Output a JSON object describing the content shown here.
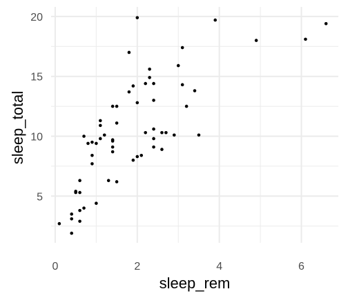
{
  "chart_data": {
    "type": "scatter",
    "title": "",
    "xlabel": "sleep_rem",
    "ylabel": "sleep_total",
    "xlim": [
      -0.1,
      6.9
    ],
    "ylim": [
      1.1,
      20.8
    ],
    "x_ticks": [
      0,
      2,
      4,
      6
    ],
    "x_tick_labels": [
      "0",
      "2",
      "4",
      "6"
    ],
    "y_ticks": [
      5,
      10,
      15,
      20
    ],
    "y_tick_labels": [
      "5",
      "10",
      "15",
      "20"
    ],
    "grid": true,
    "background": "#ffffff",
    "grid_color": "#ebebeb",
    "point_color": "#000000",
    "points": [
      [
        0.1,
        2.7
      ],
      [
        0.4,
        1.9
      ],
      [
        0.4,
        3.1
      ],
      [
        0.4,
        3.5
      ],
      [
        0.5,
        5.3
      ],
      [
        0.5,
        5.4
      ],
      [
        0.6,
        2.9
      ],
      [
        0.6,
        3.8
      ],
      [
        0.6,
        5.3
      ],
      [
        0.6,
        6.3
      ],
      [
        0.7,
        4.0
      ],
      [
        0.7,
        10.0
      ],
      [
        0.8,
        9.4
      ],
      [
        0.9,
        7.7
      ],
      [
        0.9,
        8.4
      ],
      [
        0.9,
        9.5
      ],
      [
        1.0,
        4.4
      ],
      [
        1.0,
        9.4
      ],
      [
        1.1,
        9.8
      ],
      [
        1.1,
        10.9
      ],
      [
        1.1,
        11.3
      ],
      [
        1.2,
        10.1
      ],
      [
        1.3,
        6.3
      ],
      [
        1.4,
        8.7
      ],
      [
        1.4,
        9.1
      ],
      [
        1.4,
        9.6
      ],
      [
        1.4,
        9.7
      ],
      [
        1.4,
        12.5
      ],
      [
        1.5,
        6.2
      ],
      [
        1.5,
        11.1
      ],
      [
        1.5,
        12.5
      ],
      [
        1.8,
        13.7
      ],
      [
        1.8,
        17.0
      ],
      [
        1.9,
        8.0
      ],
      [
        1.9,
        14.2
      ],
      [
        2.0,
        8.3
      ],
      [
        2.0,
        12.8
      ],
      [
        2.0,
        19.9
      ],
      [
        2.1,
        8.4
      ],
      [
        2.2,
        10.3
      ],
      [
        2.2,
        14.4
      ],
      [
        2.3,
        14.9
      ],
      [
        2.3,
        15.6
      ],
      [
        2.4,
        9.1
      ],
      [
        2.4,
        9.8
      ],
      [
        2.4,
        10.6
      ],
      [
        2.4,
        13.0
      ],
      [
        2.4,
        14.4
      ],
      [
        2.6,
        8.9
      ],
      [
        2.6,
        10.3
      ],
      [
        2.7,
        10.3
      ],
      [
        2.9,
        10.1
      ],
      [
        3.0,
        15.9
      ],
      [
        3.1,
        14.3
      ],
      [
        3.1,
        17.4
      ],
      [
        3.2,
        12.5
      ],
      [
        3.4,
        13.8
      ],
      [
        3.5,
        10.1
      ],
      [
        3.9,
        19.7
      ],
      [
        4.9,
        18.0
      ],
      [
        6.1,
        18.1
      ],
      [
        6.6,
        19.4
      ]
    ]
  }
}
